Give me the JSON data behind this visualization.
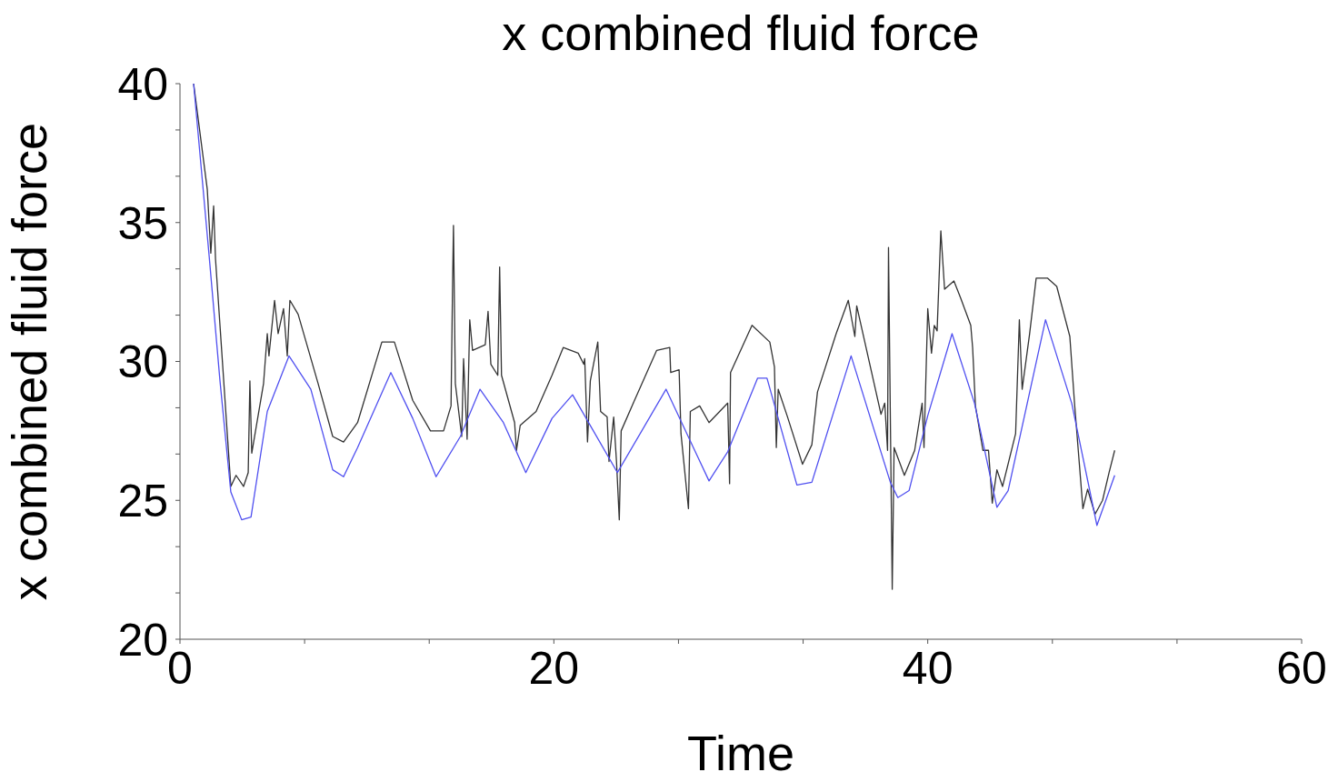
{
  "chart_data": {
    "type": "line",
    "title": "x combined fluid force",
    "xlabel": "Time",
    "ylabel": "x combined fluid force",
    "xlim": [
      0,
      60
    ],
    "xticks": [
      0,
      {
        "value": 6.667,
        "label": null
      },
      {
        "value": 13.333,
        "label": null
      },
      20,
      {
        "value": 26.667,
        "label": null
      },
      {
        "value": 33.333,
        "label": null
      },
      40,
      {
        "value": 46.667,
        "label": null
      },
      {
        "value": 53.333,
        "label": null
      },
      60
    ],
    "ylim": [
      20,
      40
    ],
    "yticks": [
      20,
      {
        "value": 21.667,
        "label": null
      },
      {
        "value": 23.333,
        "label": null
      },
      25,
      {
        "value": 26.667,
        "label": null
      },
      {
        "value": 28.333,
        "label": null
      },
      30,
      {
        "value": 31.667,
        "label": null
      },
      {
        "value": 33.333,
        "label": null
      },
      35,
      {
        "value": 36.667,
        "label": null
      },
      {
        "value": 38.333,
        "label": null
      },
      40
    ],
    "grid": false,
    "marker": "none",
    "line_style": "solid",
    "series": [
      {
        "color": "#333333",
        "x": [
          0.73,
          1.46,
          1.65,
          1.8,
          1.9,
          2.72,
          3.0,
          3.4,
          3.65,
          3.74,
          3.84,
          4.47,
          4.67,
          4.76,
          5.06,
          5.25,
          5.54,
          5.74,
          5.88,
          6.32,
          7.39,
          8.17,
          8.75,
          9.5,
          10.8,
          11.47,
          12.45,
          13.4,
          14.1,
          14.5,
          14.58,
          14.63,
          14.73,
          15.07,
          15.17,
          15.36,
          15.5,
          15.65,
          16.33,
          16.48,
          16.63,
          17.0,
          17.1,
          17.2,
          17.9,
          18.0,
          18.2,
          19.05,
          19.9,
          20.5,
          21.3,
          21.6,
          21.65,
          21.8,
          21.95,
          22.35,
          22.5,
          22.85,
          22.95,
          23.2,
          23.35,
          23.5,
          23.6,
          24.25,
          25.5,
          26.2,
          26.25,
          26.7,
          26.8,
          27.2,
          27.3,
          27.8,
          28.3,
          29.3,
          29.4,
          29.45,
          30.6,
          31.55,
          31.8,
          31.9,
          32.0,
          32.5,
          33.3,
          33.8,
          34.1,
          35.1,
          35.75,
          36.1,
          36.2,
          37.5,
          37.7,
          37.85,
          37.9,
          38.1,
          38.2,
          38.75,
          39.3,
          39.7,
          39.8,
          40.0,
          40.2,
          40.35,
          40.5,
          40.7,
          40.9,
          41.4,
          41.75,
          42.3,
          42.4,
          42.55,
          42.95,
          43.25,
          43.45,
          43.7,
          44.0,
          44.7,
          44.9,
          45.05,
          45.45,
          45.8,
          46.4,
          46.9,
          47.6,
          47.85,
          48.3,
          48.55,
          48.95,
          49.35,
          49.7,
          50.0
        ],
        "values": [
          40,
          36.2,
          33.9,
          35.6,
          33.7,
          25.5,
          25.9,
          25.5,
          26.0,
          29.3,
          26.7,
          29.2,
          31.0,
          30.2,
          32.2,
          31.0,
          31.9,
          30.2,
          32.2,
          31.7,
          29.2,
          27.3,
          27.1,
          27.8,
          30.7,
          30.7,
          28.6,
          27.5,
          27.5,
          28.4,
          32.7,
          34.9,
          29.2,
          27.3,
          30.1,
          27.2,
          31.5,
          30.4,
          30.6,
          31.8,
          29.9,
          29.5,
          33.4,
          29.5,
          27.8,
          26.8,
          27.7,
          28.2,
          29.5,
          30.5,
          30.3,
          29.9,
          30.1,
          27.1,
          29.3,
          30.7,
          28.2,
          28.0,
          26.4,
          28.0,
          26.4,
          24.3,
          27.5,
          28.5,
          30.4,
          30.5,
          29.6,
          29.7,
          27.4,
          24.7,
          28.2,
          28.4,
          27.8,
          28.5,
          25.6,
          29.6,
          31.3,
          30.7,
          29.8,
          26.9,
          29.0,
          28.0,
          26.3,
          27.0,
          28.9,
          31.0,
          32.2,
          30.9,
          32.0,
          28.1,
          28.5,
          26.8,
          34.1,
          21.8,
          26.9,
          25.9,
          26.8,
          28.5,
          26.9,
          31.9,
          30.3,
          31.3,
          31.1,
          34.7,
          32.6,
          32.9,
          32.3,
          31.3,
          30.5,
          28.4,
          26.8,
          26.8,
          24.9,
          26.1,
          25.5,
          27.4,
          31.5,
          29.0,
          31.0,
          33.0,
          33.0,
          32.7,
          30.9,
          28.5,
          24.7,
          25.4,
          24.5,
          25.0,
          26.0,
          26.8
        ]
      },
      {
        "color": "#5050f0",
        "x": [
          0.73,
          1.56,
          2.14,
          2.72,
          3.3,
          3.8,
          4.67,
          5.83,
          7.0,
          8.17,
          8.75,
          9.5,
          11.28,
          12.45,
          13.7,
          15.0,
          16.05,
          17.3,
          18.5,
          19.9,
          21.0,
          23.4,
          26.0,
          28.3,
          29.3,
          30.9,
          31.4,
          33.0,
          33.8,
          35.9,
          38.0,
          38.4,
          39.0,
          40.0,
          41.3,
          42.5,
          43.7,
          44.3,
          46.3,
          47.7,
          49.05,
          50.0
        ],
        "values": [
          40,
          33.8,
          29.3,
          25.3,
          24.3,
          24.4,
          28.2,
          30.2,
          29.0,
          26.1,
          25.85,
          26.9,
          29.6,
          27.95,
          25.85,
          27.3,
          29.0,
          27.8,
          26.0,
          27.95,
          28.8,
          26.0,
          29.0,
          25.7,
          26.75,
          29.4,
          29.4,
          25.55,
          25.65,
          30.2,
          25.65,
          25.1,
          25.35,
          28.05,
          31.0,
          28.5,
          24.75,
          25.35,
          31.5,
          28.5,
          24.1,
          25.9
        ]
      }
    ]
  }
}
